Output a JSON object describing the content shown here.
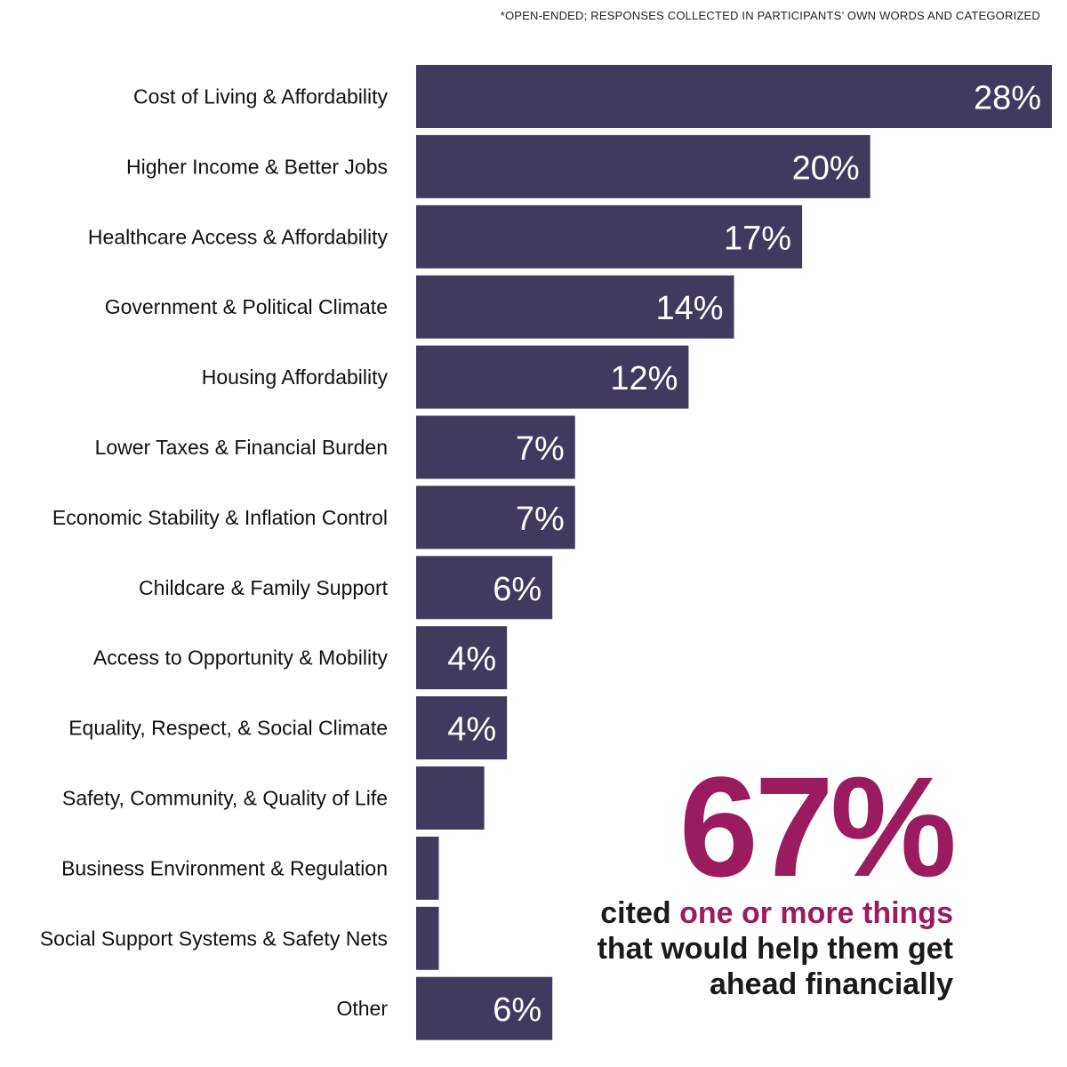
{
  "footnote": "*OPEN-ENDED; RESPONSES COLLECTED IN PARTICIPANTS’ OWN WORDS AND CATEGORIZED",
  "colors": {
    "bar": "#413a5e",
    "accent": "#9b1b5f",
    "text": "#111111"
  },
  "chart_data": {
    "type": "bar",
    "orientation": "horizontal",
    "categories": [
      "Cost of Living & Affordability",
      "Higher Income & Better Jobs",
      "Healthcare Access & Affordability",
      "Government & Political Climate",
      "Housing Affordability",
      "Lower Taxes & Financial Burden",
      "Economic Stability & Inflation Control",
      "Childcare & Family Support",
      "Access to Opportunity & Mobility",
      "Equality, Respect, & Social Climate",
      "Safety, Community, & Quality of Life",
      "Business Environment & Regulation",
      "Social Support Systems & Safety Nets",
      "Other"
    ],
    "values": [
      28,
      20,
      17,
      14,
      12,
      7,
      7,
      6,
      4,
      4,
      3,
      1,
      1,
      6
    ],
    "data_labels": [
      "28%",
      "20%",
      "17%",
      "14%",
      "12%",
      "7%",
      "7%",
      "6%",
      "4%",
      "4%",
      "",
      "",
      "",
      "6%"
    ],
    "xlim": [
      0,
      28
    ]
  },
  "callout": {
    "big_number": "67%",
    "text_before": "cited ",
    "text_accent": "one or more things",
    "text_after": " that would help them get ahead financially"
  }
}
